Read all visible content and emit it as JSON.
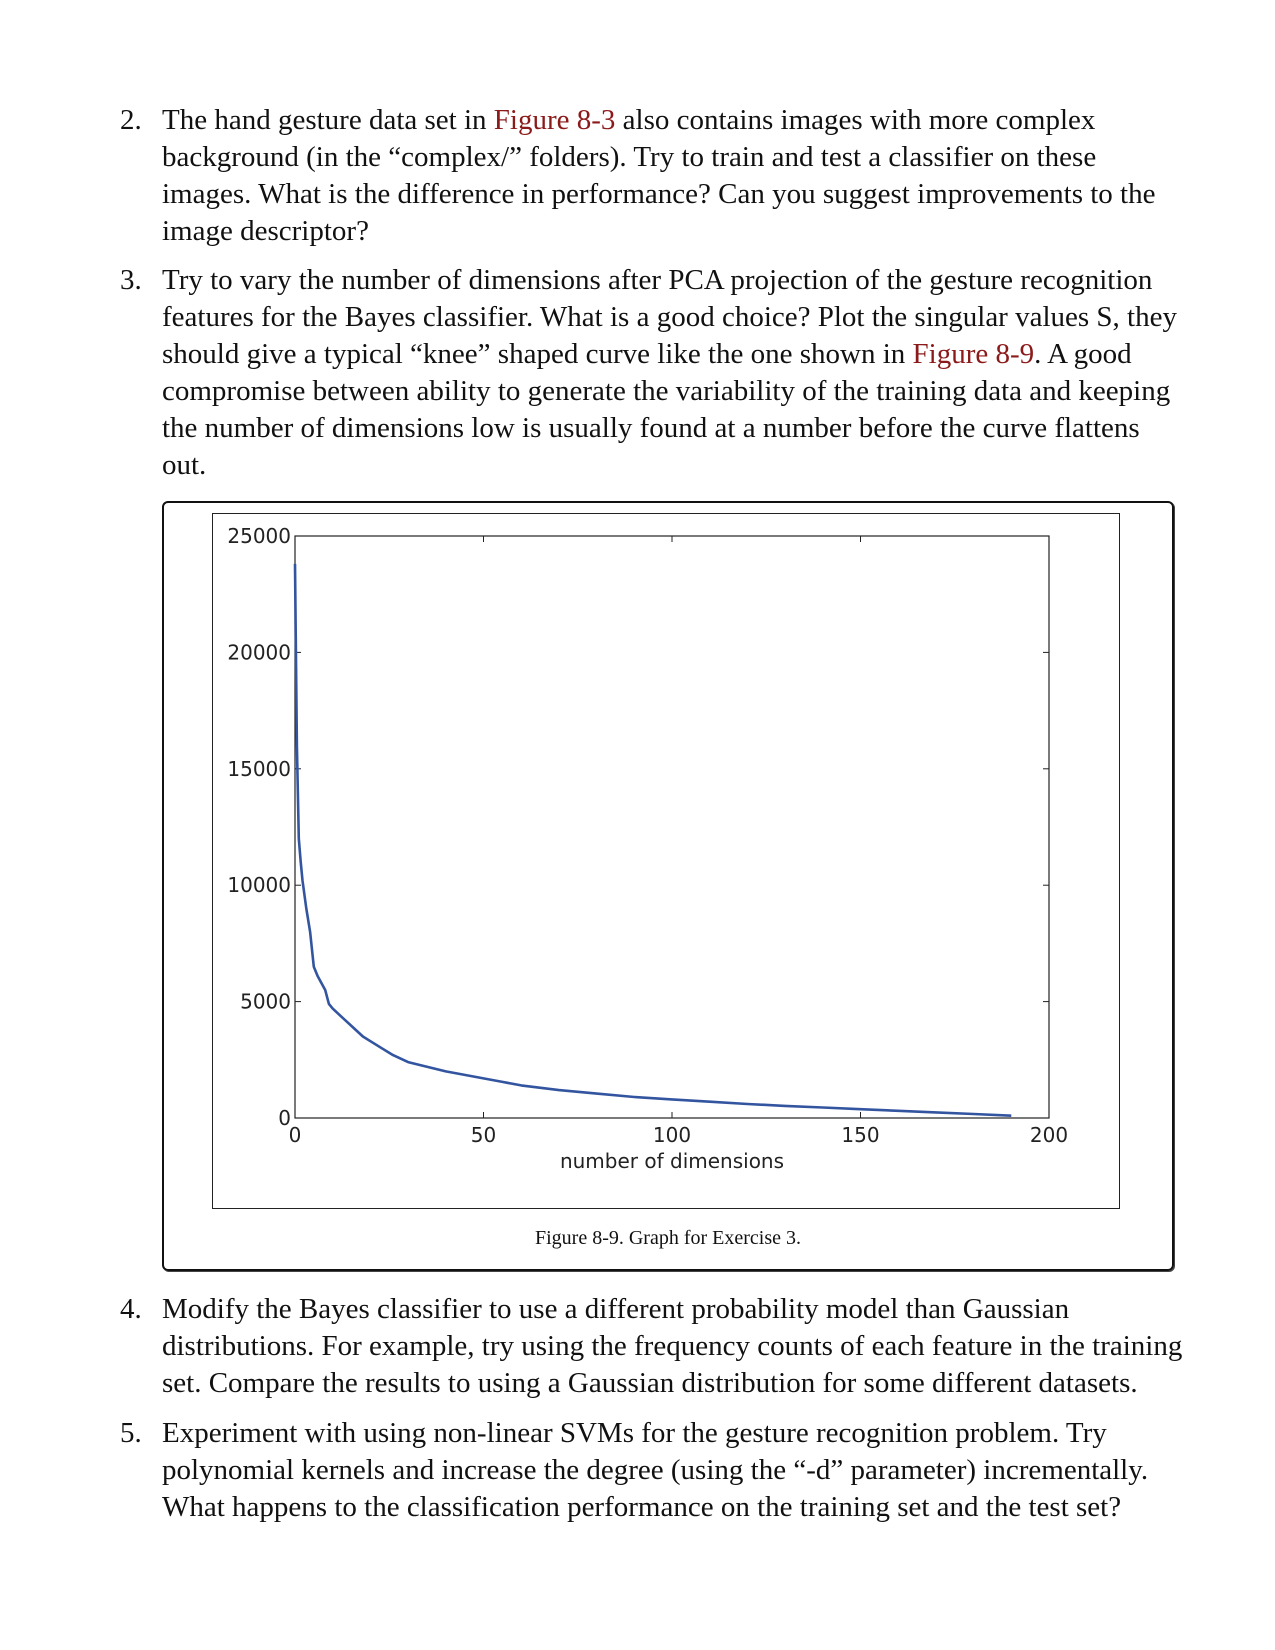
{
  "items": [
    {
      "number": "2.",
      "lines": [
        [
          {
            "t": "The hand gesture data set in "
          },
          {
            "t": "Figure 8-3",
            "ref": true
          },
          {
            "t": " also contains images with more complex"
          }
        ],
        [
          {
            "t": "background (in the “complex/” folders). Try to train and test a classifier on these"
          }
        ],
        [
          {
            "t": "images. What is the difference in performance? Can you suggest improvements to the"
          }
        ],
        [
          {
            "t": "image descriptor?"
          }
        ]
      ]
    },
    {
      "number": "3.",
      "lines": [
        [
          {
            "t": "Try to vary the number of dimensions after PCA projection of the gesture recognition"
          }
        ],
        [
          {
            "t": "features for the Bayes classifier. What is a good choice? Plot the singular values S, they"
          }
        ],
        [
          {
            "t": "should give a typical “knee” shaped curve like the one shown in "
          },
          {
            "t": "Figure 8-9",
            "ref": true
          },
          {
            "t": ". A good"
          }
        ],
        [
          {
            "t": "compromise between ability to generate the variability of the training data and keeping"
          }
        ],
        [
          {
            "t": "the number of dimensions low is usually found at a number before the curve flattens"
          }
        ],
        [
          {
            "t": "out."
          }
        ]
      ]
    },
    {
      "number": "4.",
      "lines": [
        [
          {
            "t": "Modify the Bayes classifier to use a different probability model than Gaussian"
          }
        ],
        [
          {
            "t": "distributions. For example, try using the frequency counts of each feature in the training"
          }
        ],
        [
          {
            "t": "set. Compare the results to using a Gaussian distribution for some different datasets."
          }
        ]
      ]
    },
    {
      "number": "5.",
      "lines": [
        [
          {
            "t": "Experiment with using non-linear SVMs for the gesture recognition problem. Try"
          }
        ],
        [
          {
            "t": "polynomial kernels and increase the degree (using the “-d” parameter) incrementally."
          }
        ],
        [
          {
            "t": "What happens to the classification performance on the training set and the test set?"
          }
        ]
      ]
    }
  ],
  "figure": {
    "caption": "Figure 8-9. Graph for Exercise 3."
  },
  "chart_data": {
    "type": "line",
    "xlabel": "number of dimensions",
    "ylabel": "",
    "xlim": [
      0,
      200
    ],
    "ylim": [
      0,
      25000
    ],
    "xticks": [
      "0",
      "50",
      "100",
      "150",
      "200"
    ],
    "yticks": [
      "0",
      "5000",
      "10000",
      "15000",
      "20000",
      "25000"
    ],
    "grid": false,
    "line_color": "#3355a0",
    "series": [
      {
        "x": [
          0,
          0.5,
          1,
          1.5,
          2,
          3,
          4,
          5,
          6,
          7,
          8,
          9,
          10,
          12,
          14,
          16,
          18,
          20,
          23,
          26,
          30,
          35,
          40,
          45,
          50,
          55,
          60,
          70,
          80,
          90,
          100,
          110,
          120,
          130,
          140,
          150,
          160,
          170,
          180,
          190
        ],
        "y": [
          23800,
          16000,
          12000,
          11000,
          10200,
          9000,
          8000,
          6500,
          6100,
          5800,
          5500,
          4900,
          4700,
          4400,
          4100,
          3800,
          3500,
          3300,
          3000,
          2700,
          2400,
          2200,
          2000,
          1850,
          1700,
          1550,
          1400,
          1200,
          1050,
          900,
          800,
          700,
          600,
          520,
          450,
          380,
          310,
          240,
          170,
          100
        ]
      }
    ]
  }
}
